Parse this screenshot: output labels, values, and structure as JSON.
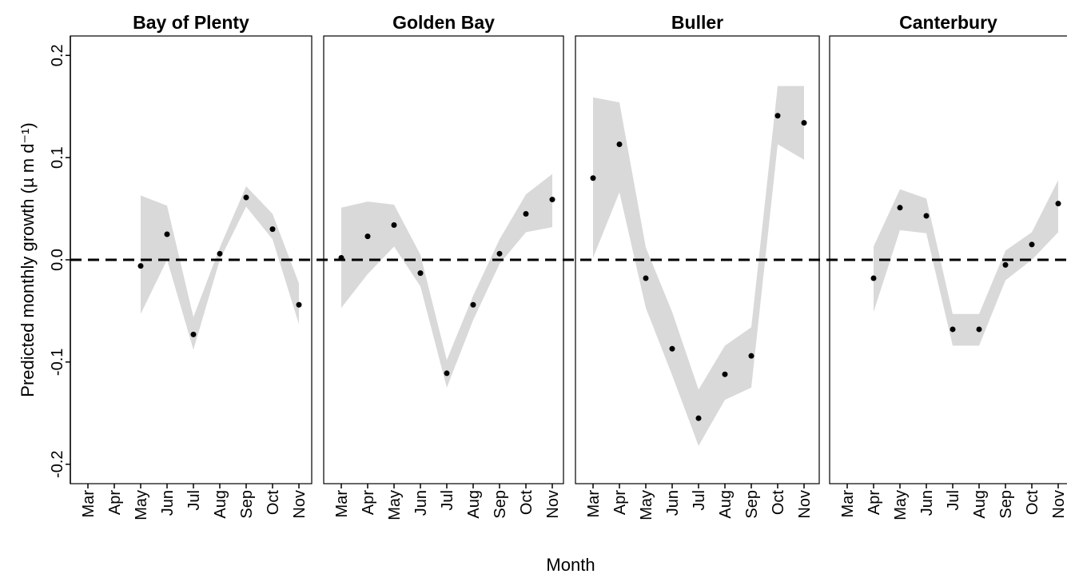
{
  "chart_data": [
    {
      "type": "pointband",
      "title": "Bay of Plenty",
      "ylabel": "Predicted monthly growth (µ m d⁻¹)",
      "xlabel": "Month",
      "reference_line": 0,
      "categories": [
        "Mar",
        "Apr",
        "May",
        "Jun",
        "Jul",
        "Aug",
        "Sep",
        "Oct",
        "Nov"
      ],
      "values": [
        null,
        null,
        -0.006,
        0.025,
        -0.073,
        0.006,
        0.061,
        0.03,
        -0.044
      ],
      "upper": [
        null,
        null,
        0.063,
        0.053,
        -0.056,
        0.012,
        0.072,
        0.045,
        -0.023
      ],
      "lower": [
        null,
        null,
        -0.053,
        0.0,
        -0.088,
        0.0,
        0.052,
        0.02,
        -0.063
      ],
      "ylim": [
        -0.219,
        0.219
      ],
      "yticks": [
        -0.2,
        -0.1,
        {
          "value": 0,
          "label": "0.0"
        },
        0.1,
        0.2
      ]
    },
    {
      "type": "pointband",
      "title": "Golden Bay",
      "categories": [
        "Mar",
        "Apr",
        "May",
        "Jun",
        "Jul",
        "Aug",
        "Sep",
        "Oct",
        "Nov"
      ],
      "values": [
        0.002,
        0.023,
        0.034,
        -0.013,
        -0.111,
        -0.044,
        0.006,
        0.045,
        0.059
      ],
      "upper": [
        0.051,
        0.057,
        0.054,
        0.005,
        -0.098,
        -0.035,
        0.02,
        0.064,
        0.084
      ],
      "lower": [
        -0.047,
        -0.014,
        0.013,
        -0.026,
        -0.125,
        -0.059,
        -0.004,
        0.027,
        0.032
      ],
      "ylim": [
        -0.219,
        0.219
      ]
    },
    {
      "type": "pointband",
      "title": "Buller",
      "categories": [
        "Mar",
        "Apr",
        "May",
        "Jun",
        "Jul",
        "Aug",
        "Sep",
        "Oct",
        "Nov"
      ],
      "values": [
        0.08,
        0.113,
        -0.018,
        -0.087,
        -0.155,
        -0.112,
        -0.094,
        0.141,
        0.134
      ],
      "upper": [
        0.159,
        0.154,
        0.012,
        -0.051,
        -0.127,
        -0.084,
        -0.066,
        0.17,
        0.17
      ],
      "lower": [
        0.002,
        0.066,
        -0.047,
        -0.113,
        -0.182,
        -0.137,
        -0.125,
        0.113,
        0.098
      ],
      "ylim": [
        -0.219,
        0.219
      ]
    },
    {
      "type": "pointband",
      "title": "Canterbury",
      "categories": [
        "Mar",
        "Apr",
        "May",
        "Jun",
        "Jul",
        "Aug",
        "Sep",
        "Oct",
        "Nov"
      ],
      "values": [
        null,
        -0.018,
        0.051,
        0.043,
        -0.068,
        -0.068,
        -0.005,
        0.015,
        0.055
      ],
      "upper": [
        null,
        0.013,
        0.069,
        0.06,
        -0.053,
        -0.053,
        0.009,
        0.027,
        0.078
      ],
      "lower": [
        null,
        -0.051,
        0.029,
        0.026,
        -0.084,
        -0.084,
        -0.02,
        0.0,
        0.027
      ],
      "ylim": [
        -0.219,
        0.219
      ]
    }
  ]
}
